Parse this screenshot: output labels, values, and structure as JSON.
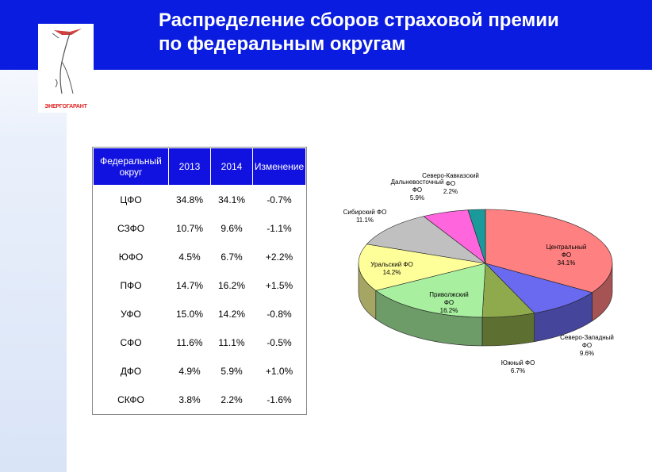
{
  "slide": {
    "title_line1": "Распределение сборов страховой премии",
    "title_line2": "по федеральным округам",
    "logo_text": "ЭНЕРГОГАРАНТ"
  },
  "table": {
    "headers": [
      "Федеральный округ",
      "2013",
      "2014",
      "Изменение"
    ],
    "rows": [
      [
        "ЦФО",
        "34.8%",
        "34.1%",
        "-0.7%"
      ],
      [
        "СЗФО",
        "10.7%",
        "9.6%",
        "-1.1%"
      ],
      [
        "ЮФО",
        "4.5%",
        "6.7%",
        "+2.2%"
      ],
      [
        "ПФО",
        "14.7%",
        "16.2%",
        "+1.5%"
      ],
      [
        "УФО",
        "15.0%",
        "14.2%",
        "-0.8%"
      ],
      [
        "СФО",
        "11.6%",
        "11.1%",
        "-0.5%"
      ],
      [
        "ДФО",
        "4.9%",
        "5.9%",
        "+1.0%"
      ],
      [
        "СКФО",
        "3.8%",
        "2.2%",
        "-1.6%"
      ]
    ]
  },
  "chart_data": {
    "type": "pie",
    "title": "",
    "slices": [
      {
        "name": "Центральный ФО",
        "line1": "Центральный",
        "line2": "ФО",
        "value": 34.1,
        "label": "34.1%",
        "color": "#ff8080"
      },
      {
        "name": "Северо-Западный ФО",
        "line1": "Северо-Западный",
        "line2": "ФО",
        "value": 9.6,
        "label": "9.6%",
        "color": "#6a6af0"
      },
      {
        "name": "Южный ФО",
        "line1": "Южный ФО",
        "line2": "",
        "value": 6.7,
        "label": "6.7%",
        "color": "#8faa4c"
      },
      {
        "name": "Приволжский ФО",
        "line1": "Приволжский",
        "line2": "ФО",
        "value": 16.2,
        "label": "16.2%",
        "color": "#a8f0a0"
      },
      {
        "name": "Уральский ФО",
        "line1": "Уральский ФО",
        "line2": "",
        "value": 14.2,
        "label": "14.2%",
        "color": "#ffff9a"
      },
      {
        "name": "Сибирский ФО",
        "line1": "Сибирский ФО",
        "line2": "",
        "value": 11.1,
        "label": "11.1%",
        "color": "#c0c0c0"
      },
      {
        "name": "Дальневосточный ФО",
        "line1": "Дальневосточный",
        "line2": "ФО",
        "value": 5.9,
        "label": "5.9%",
        "color": "#ff66dd"
      },
      {
        "name": "Северо-Кавказский ФО",
        "line1": "Северо-Кавказский",
        "line2": "ФО",
        "value": 2.2,
        "label": "2.2%",
        "color": "#1a9a9a"
      }
    ]
  }
}
